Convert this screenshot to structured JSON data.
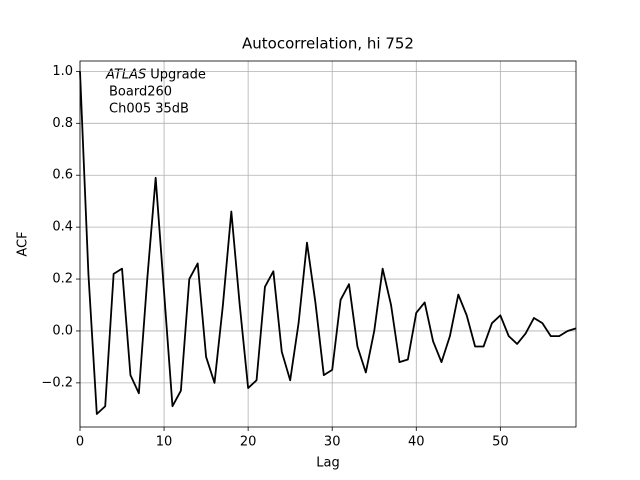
{
  "chart_data": {
    "type": "line",
    "title": "Autocorrelation, hi 752",
    "xlabel": "Lag",
    "ylabel": "ACF",
    "annotation": {
      "emphasis": "ATLAS",
      "lines": [
        "Upgrade",
        "Board260",
        "Ch005 35dB"
      ]
    },
    "x": [
      0,
      1,
      2,
      3,
      4,
      5,
      6,
      7,
      8,
      9,
      10,
      11,
      12,
      13,
      14,
      15,
      16,
      17,
      18,
      19,
      20,
      21,
      22,
      23,
      24,
      25,
      26,
      27,
      28,
      29,
      30,
      31,
      32,
      33,
      34,
      35,
      36,
      37,
      38,
      39,
      40,
      41,
      42,
      43,
      44,
      45,
      46,
      47,
      48,
      49,
      50,
      51,
      52,
      53,
      54,
      55,
      56,
      57,
      58,
      59
    ],
    "series": [
      {
        "name": "ACF",
        "color": "#000000",
        "values": [
          1.0,
          0.22,
          -0.32,
          -0.29,
          0.22,
          0.24,
          -0.17,
          -0.24,
          0.2,
          0.59,
          0.15,
          -0.29,
          -0.23,
          0.2,
          0.26,
          -0.1,
          -0.2,
          0.1,
          0.46,
          0.1,
          -0.22,
          -0.19,
          0.17,
          0.23,
          -0.08,
          -0.19,
          0.03,
          0.34,
          0.11,
          -0.17,
          -0.15,
          0.12,
          0.18,
          -0.06,
          -0.16,
          0.0,
          0.24,
          0.1,
          -0.12,
          -0.11,
          0.07,
          0.11,
          -0.04,
          -0.12,
          -0.02,
          0.14,
          0.06,
          -0.06,
          -0.06,
          0.03,
          0.06,
          -0.02,
          -0.05,
          -0.01,
          0.05,
          0.03,
          -0.02,
          -0.02,
          0.0,
          0.01
        ]
      }
    ],
    "xlim": [
      0,
      59
    ],
    "ylim": [
      -0.37,
      1.04
    ],
    "xticks": [
      0,
      10,
      20,
      30,
      40,
      50
    ],
    "yticks": [
      {
        "value": -0.2,
        "label": "−0.2"
      },
      {
        "value": 0,
        "label": "0.0"
      },
      0.2,
      0.4,
      0.6,
      0.8,
      {
        "value": 1.0,
        "label": "1.0"
      }
    ],
    "grid": true
  }
}
